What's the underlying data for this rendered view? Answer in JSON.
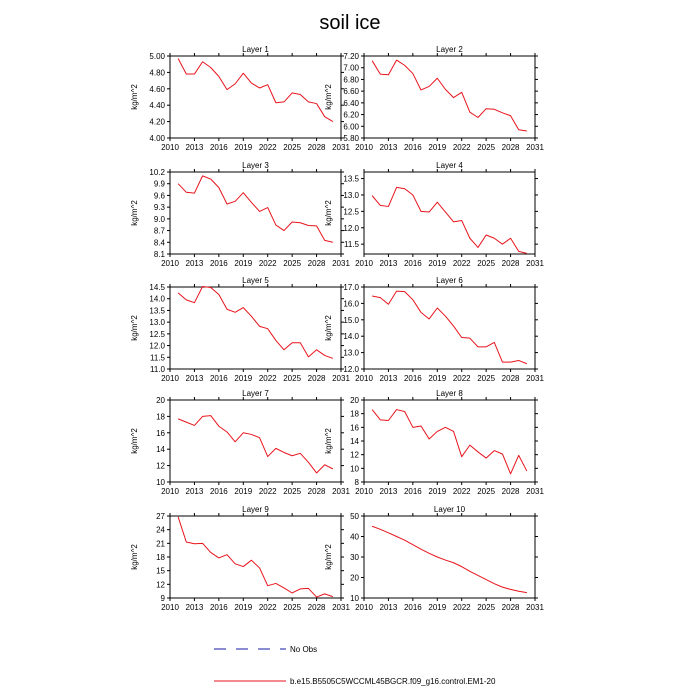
{
  "figure": {
    "title": "soil ice",
    "legend": {
      "obs_label": "No Obs",
      "model_label": "b.e15.B5505C5WCCML45BGCR.f09_g16.control.EM1-20",
      "obs_color": "#1a1aa6",
      "model_color": "#e8141c"
    }
  },
  "chart_data": [
    {
      "type": "line",
      "title": "Layer 1",
      "ylabel": "kg/m^2",
      "xlim": [
        2010,
        2031
      ],
      "ylim": [
        4.0,
        5.0
      ],
      "xticks": [
        "2010",
        "2013",
        "2016",
        "2019",
        "2022",
        "2025",
        "2028",
        "2031"
      ],
      "yticks": [
        "4.00",
        "4.20",
        "4.40",
        "4.60",
        "4.80",
        "5.00"
      ],
      "series": [
        {
          "color": "#e8141c",
          "x": [
            2011,
            2012,
            2013,
            2014,
            2015,
            2016,
            2017,
            2018,
            2019,
            2020,
            2021,
            2022,
            2023,
            2024,
            2025,
            2026,
            2027,
            2028,
            2029,
            2030
          ],
          "y": [
            4.97,
            4.78,
            4.78,
            4.93,
            4.86,
            4.75,
            4.59,
            4.66,
            4.79,
            4.67,
            4.61,
            4.65,
            4.43,
            4.44,
            4.55,
            4.53,
            4.44,
            4.42,
            4.26,
            4.2
          ]
        }
      ]
    },
    {
      "type": "line",
      "title": "Layer 2",
      "ylabel": "kg/m^2",
      "xlim": [
        2010,
        2031
      ],
      "ylim": [
        5.8,
        7.2
      ],
      "xticks": [
        "2010",
        "2013",
        "2016",
        "2019",
        "2022",
        "2025",
        "2028",
        "2031"
      ],
      "yticks": [
        "5.80",
        "6.00",
        "6.20",
        "6.40",
        "6.60",
        "6.80",
        "7.00",
        "7.20"
      ],
      "series": [
        {
          "color": "#e8141c",
          "x": [
            2011,
            2012,
            2013,
            2014,
            2015,
            2016,
            2017,
            2018,
            2019,
            2020,
            2021,
            2022,
            2023,
            2024,
            2025,
            2026,
            2027,
            2028,
            2029,
            2030
          ],
          "y": [
            7.12,
            6.89,
            6.88,
            7.13,
            7.04,
            6.9,
            6.62,
            6.68,
            6.82,
            6.63,
            6.49,
            6.58,
            6.24,
            6.15,
            6.3,
            6.29,
            6.23,
            6.18,
            5.94,
            5.92
          ]
        }
      ]
    },
    {
      "type": "line",
      "title": "Layer 3",
      "ylabel": "kg/m^2",
      "xlim": [
        2010,
        2031
      ],
      "ylim": [
        8.1,
        10.2
      ],
      "xticks": [
        "2010",
        "2013",
        "2016",
        "2019",
        "2022",
        "2025",
        "2028",
        "2031"
      ],
      "yticks": [
        "8.1",
        "8.4",
        "8.7",
        "9.0",
        "9.3",
        "9.6",
        "9.9",
        "10.2"
      ],
      "series": [
        {
          "color": "#e8141c",
          "x": [
            2011,
            2012,
            2013,
            2014,
            2015,
            2016,
            2017,
            2018,
            2019,
            2020,
            2021,
            2022,
            2023,
            2024,
            2025,
            2026,
            2027,
            2028,
            2029,
            2030
          ],
          "y": [
            9.9,
            9.68,
            9.66,
            10.1,
            10.02,
            9.8,
            9.38,
            9.45,
            9.67,
            9.42,
            9.19,
            9.29,
            8.84,
            8.7,
            8.92,
            8.9,
            8.83,
            8.82,
            8.45,
            8.4
          ]
        }
      ]
    },
    {
      "type": "line",
      "title": "Layer 4",
      "ylabel": "kg/m^2",
      "xlim": [
        2010,
        2031
      ],
      "ylim": [
        11.2,
        13.7
      ],
      "xticks": [
        "2010",
        "2013",
        "2016",
        "2019",
        "2022",
        "2025",
        "2028",
        "2031"
      ],
      "yticks": [
        "11.5",
        "12.0",
        "12.5",
        "13.0",
        "13.5"
      ],
      "series": [
        {
          "color": "#e8141c",
          "x": [
            2011,
            2012,
            2013,
            2014,
            2015,
            2016,
            2017,
            2018,
            2019,
            2020,
            2021,
            2022,
            2023,
            2024,
            2025,
            2026,
            2027,
            2028,
            2029,
            2030
          ],
          "y": [
            12.98,
            12.68,
            12.65,
            13.23,
            13.19,
            13.0,
            12.5,
            12.48,
            12.78,
            12.48,
            12.18,
            12.22,
            11.68,
            11.4,
            11.78,
            11.68,
            11.5,
            11.68,
            11.28,
            11.22
          ]
        }
      ]
    },
    {
      "type": "line",
      "title": "Layer 5",
      "ylabel": "kg/m^2",
      "xlim": [
        2010,
        2031
      ],
      "ylim": [
        11.0,
        14.5
      ],
      "xticks": [
        "2010",
        "2013",
        "2016",
        "2019",
        "2022",
        "2025",
        "2028",
        "2031"
      ],
      "yticks": [
        "11.0",
        "11.5",
        "12.0",
        "12.5",
        "13.0",
        "13.5",
        "14.0",
        "14.5"
      ],
      "series": [
        {
          "color": "#e8141c",
          "x": [
            2011,
            2012,
            2013,
            2014,
            2015,
            2016,
            2017,
            2018,
            2019,
            2020,
            2021,
            2022,
            2023,
            2024,
            2025,
            2026,
            2027,
            2028,
            2029,
            2030
          ],
          "y": [
            14.25,
            13.95,
            13.83,
            14.52,
            14.48,
            14.18,
            13.55,
            13.42,
            13.62,
            13.25,
            12.82,
            12.72,
            12.22,
            11.82,
            12.12,
            12.12,
            11.52,
            11.82,
            11.58,
            11.45
          ]
        }
      ]
    },
    {
      "type": "line",
      "title": "Layer 6",
      "ylabel": "kg/m^2",
      "xlim": [
        2010,
        2031
      ],
      "ylim": [
        12.0,
        17.0
      ],
      "xticks": [
        "2010",
        "2013",
        "2016",
        "2019",
        "2022",
        "2025",
        "2028",
        "2031"
      ],
      "yticks": [
        "12.0",
        "13.0",
        "14.0",
        "15.0",
        "16.0",
        "17.0"
      ],
      "series": [
        {
          "color": "#e8141c",
          "x": [
            2011,
            2012,
            2013,
            2014,
            2015,
            2016,
            2017,
            2018,
            2019,
            2020,
            2021,
            2022,
            2023,
            2024,
            2025,
            2026,
            2027,
            2028,
            2029,
            2030
          ],
          "y": [
            16.45,
            16.35,
            15.95,
            16.75,
            16.72,
            16.22,
            15.45,
            15.05,
            15.72,
            15.22,
            14.62,
            13.92,
            13.88,
            13.35,
            13.35,
            13.62,
            12.42,
            12.42,
            12.52,
            12.32
          ]
        }
      ]
    },
    {
      "type": "line",
      "title": "Layer 7",
      "ylabel": "kg/m^2",
      "xlim": [
        2010,
        2031
      ],
      "ylim": [
        10,
        20
      ],
      "xticks": [
        "2010",
        "2013",
        "2016",
        "2019",
        "2022",
        "2025",
        "2028",
        "2031"
      ],
      "yticks": [
        "10",
        "12",
        "14",
        "16",
        "18",
        "20"
      ],
      "series": [
        {
          "color": "#e8141c",
          "x": [
            2011,
            2012,
            2013,
            2014,
            2015,
            2016,
            2017,
            2018,
            2019,
            2020,
            2021,
            2022,
            2023,
            2024,
            2025,
            2026,
            2027,
            2028,
            2029,
            2030
          ],
          "y": [
            17.7,
            17.3,
            16.9,
            18.0,
            18.1,
            16.8,
            16.1,
            14.9,
            16.0,
            15.8,
            15.4,
            13.1,
            14.1,
            13.6,
            13.2,
            13.5,
            12.4,
            11.1,
            12.1,
            11.6
          ]
        }
      ]
    },
    {
      "type": "line",
      "title": "Layer 8",
      "ylabel": "kg/m^2",
      "xlim": [
        2010,
        2031
      ],
      "ylim": [
        8,
        20
      ],
      "xticks": [
        "2010",
        "2013",
        "2016",
        "2019",
        "2022",
        "2025",
        "2028",
        "2031"
      ],
      "yticks": [
        "8",
        "10",
        "12",
        "14",
        "16",
        "18",
        "20"
      ],
      "series": [
        {
          "color": "#e8141c",
          "x": [
            2011,
            2012,
            2013,
            2014,
            2015,
            2016,
            2017,
            2018,
            2019,
            2020,
            2021,
            2022,
            2023,
            2024,
            2025,
            2026,
            2027,
            2028,
            2029,
            2030
          ],
          "y": [
            18.6,
            17.1,
            17.0,
            18.6,
            18.3,
            16.0,
            16.2,
            14.3,
            15.4,
            16.0,
            15.4,
            11.7,
            13.4,
            12.4,
            11.5,
            12.6,
            12.1,
            9.2,
            11.9,
            9.6
          ]
        }
      ]
    },
    {
      "type": "line",
      "title": "Layer 9",
      "ylabel": "kg/m^2",
      "xlim": [
        2010,
        2031
      ],
      "ylim": [
        9,
        27
      ],
      "xticks": [
        "2010",
        "2013",
        "2016",
        "2019",
        "2022",
        "2025",
        "2028",
        "2031"
      ],
      "yticks": [
        "9",
        "12",
        "15",
        "18",
        "21",
        "24",
        "27"
      ],
      "series": [
        {
          "color": "#e8141c",
          "x": [
            2011,
            2012,
            2013,
            2014,
            2015,
            2016,
            2017,
            2018,
            2019,
            2020,
            2021,
            2022,
            2023,
            2024,
            2025,
            2026,
            2027,
            2028,
            2029,
            2030
          ],
          "y": [
            26.8,
            21.3,
            20.9,
            21.0,
            19.0,
            17.8,
            18.5,
            16.5,
            15.9,
            17.3,
            15.6,
            11.7,
            12.2,
            11.2,
            10.1,
            11.0,
            11.1,
            9.2,
            9.9,
            9.3
          ]
        }
      ]
    },
    {
      "type": "line",
      "title": "Layer 10",
      "ylabel": "kg/m^2",
      "xlim": [
        2010,
        2031
      ],
      "ylim": [
        10,
        50
      ],
      "xticks": [
        "2010",
        "2013",
        "2016",
        "2019",
        "2022",
        "2025",
        "2028",
        "2031"
      ],
      "yticks": [
        "10",
        "20",
        "30",
        "40",
        "50"
      ],
      "series": [
        {
          "color": "#e8141c",
          "x": [
            2011,
            2012,
            2013,
            2014,
            2015,
            2016,
            2017,
            2018,
            2019,
            2020,
            2021,
            2022,
            2023,
            2024,
            2025,
            2026,
            2027,
            2028,
            2029,
            2030
          ],
          "y": [
            45.0,
            43.5,
            41.8,
            40.0,
            38.2,
            36.0,
            33.8,
            31.8,
            30.0,
            28.5,
            27.2,
            25.3,
            23.0,
            21.0,
            19.0,
            17.0,
            15.3,
            14.2,
            13.3,
            12.6
          ]
        }
      ]
    }
  ]
}
